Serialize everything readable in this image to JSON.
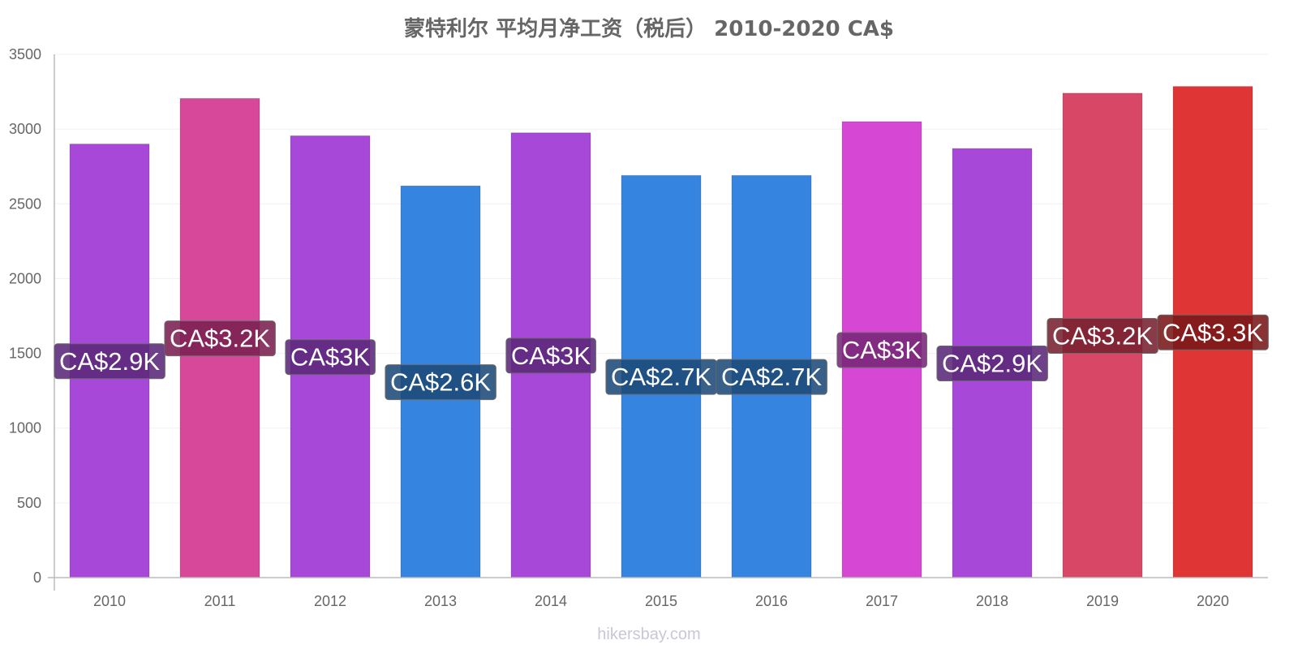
{
  "chart_data": {
    "type": "bar",
    "title": "蒙特利尔 平均月净工资（税后） 2010-2020 CA$",
    "xlabel": "",
    "ylabel": "",
    "ylim": [
      0,
      3500
    ],
    "yticks": [
      0,
      500,
      1000,
      1500,
      2000,
      2500,
      3000,
      3500
    ],
    "grid": true,
    "categories": [
      "2010",
      "2011",
      "2012",
      "2013",
      "2014",
      "2015",
      "2016",
      "2017",
      "2018",
      "2019",
      "2020"
    ],
    "values": [
      2900,
      3205,
      2955,
      2620,
      2975,
      2690,
      2690,
      3050,
      2870,
      3240,
      3285
    ],
    "data_labels": [
      "CA$2.9K",
      "CA$3.2K",
      "CA$3K",
      "CA$2.6K",
      "CA$3K",
      "CA$2.7K",
      "CA$2.7K",
      "CA$3K",
      "CA$2.9K",
      "CA$3.2K",
      "CA$3.3K"
    ],
    "bar_colors": [
      "#a848d8",
      "#d8489a",
      "#a848d8",
      "#3584e0",
      "#a848d8",
      "#3584e0",
      "#3584e0",
      "#d648d4",
      "#a848d8",
      "#d84866",
      "#e03535"
    ],
    "label_bg_colors": [
      "#5a2878",
      "#7a2050",
      "#5a2878",
      "#1e4a78",
      "#5a2878",
      "#1e4a78",
      "#1e4a78",
      "#782678",
      "#5a2878",
      "#782030",
      "#781818"
    ]
  },
  "watermark": "hikersbay.com"
}
